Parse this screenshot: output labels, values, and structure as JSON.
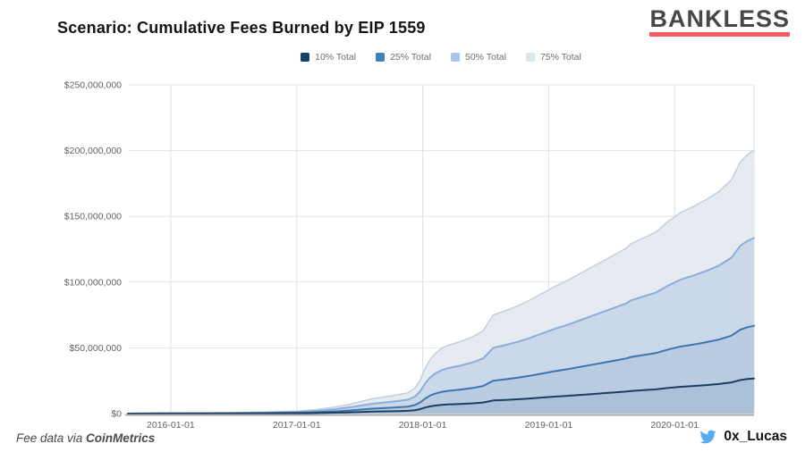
{
  "header": {
    "title": "Scenario: Cumulative Fees Burned by EIP 1559",
    "logo": {
      "text": "BANKLESS",
      "text_color": "#46474a",
      "underline_color": "#ee5a5f"
    }
  },
  "footer": {
    "source_prefix": "Fee data via ",
    "source_name": "CoinMetrics",
    "author_handle": "0x_Lucas",
    "twitter_icon_color": "#55acee"
  },
  "chart_data": {
    "type": "area",
    "title": "Scenario: Cumulative Fees Burned by EIP 1559",
    "legend_position": "top",
    "grid": true,
    "x_axis": {
      "label": "",
      "domain_years": [
        2015.66,
        2020.63
      ],
      "tick_years": [
        2016,
        2017,
        2018,
        2019,
        2020
      ],
      "tick_labels": [
        "2016-01-01",
        "2017-01-01",
        "2018-01-01",
        "2019-01-01",
        "2020-01-01"
      ]
    },
    "y_axis": {
      "label": "",
      "min_usd": 0,
      "max_usd": 250000000,
      "tick_values_usd": [
        0,
        50000000,
        100000000,
        150000000,
        200000000,
        250000000
      ],
      "tick_labels": [
        "$0",
        "$50,000,000",
        "$100,000,000",
        "$150,000,000",
        "$200,000,000",
        "$250,000,000"
      ]
    },
    "x_years": [
      2015.66,
      2016.0,
      2016.25,
      2016.5,
      2016.75,
      2017.0,
      2017.15,
      2017.3,
      2017.4,
      2017.5,
      2017.6,
      2017.7,
      2017.8,
      2017.88,
      2017.94,
      2017.98,
      2018.02,
      2018.06,
      2018.1,
      2018.15,
      2018.2,
      2018.3,
      2018.4,
      2018.48,
      2018.52,
      2018.56,
      2018.65,
      2018.75,
      2018.85,
      2018.95,
      2019.05,
      2019.15,
      2019.25,
      2019.35,
      2019.45,
      2019.55,
      2019.62,
      2019.65,
      2019.75,
      2019.85,
      2019.95,
      2020.05,
      2020.15,
      2020.25,
      2020.35,
      2020.45,
      2020.52,
      2020.58,
      2020.63
    ],
    "total_scenario_millions_usd": [
      0,
      0.5,
      0.7,
      1.0,
      1.6,
      2.6,
      4,
      6.5,
      9,
      12,
      15,
      17,
      19,
      21,
      26,
      34,
      46,
      55,
      61,
      66,
      69,
      73,
      78,
      84,
      92,
      100,
      104,
      109,
      115,
      122,
      129,
      135,
      142,
      149,
      156,
      163,
      168,
      172,
      178,
      184,
      195,
      204,
      210,
      217,
      225,
      237,
      255,
      263,
      267
    ],
    "series": [
      {
        "key": "10pct",
        "name": "10% Total",
        "fraction_of_total": 0.1,
        "legend_color": "#123e6b",
        "stroke": "#1c3e61",
        "fill": "#abc0d9",
        "stroke_width": 2,
        "end_value_millions_usd_approx": 27
      },
      {
        "key": "25pct",
        "name": "25% Total",
        "fraction_of_total": 0.25,
        "legend_color": "#3f7fc1",
        "stroke": "#3d74ae",
        "fill": "#bacce2",
        "stroke_width": 2,
        "end_value_millions_usd_approx": 67
      },
      {
        "key": "50pct",
        "name": "50% Total",
        "fraction_of_total": 0.5,
        "legend_color": "#a7c4e9",
        "stroke": "#8aaed9",
        "fill": "#cbd8e9",
        "stroke_width": 2,
        "end_value_millions_usd_approx": 133
      },
      {
        "key": "75pct",
        "name": "75% Total",
        "fraction_of_total": 0.75,
        "legend_color": "#dce4ee",
        "stroke": "#c5cfdb",
        "fill": "#e6ebf2",
        "stroke_width": 1.5,
        "end_value_millions_usd_approx": 200
      }
    ]
  }
}
